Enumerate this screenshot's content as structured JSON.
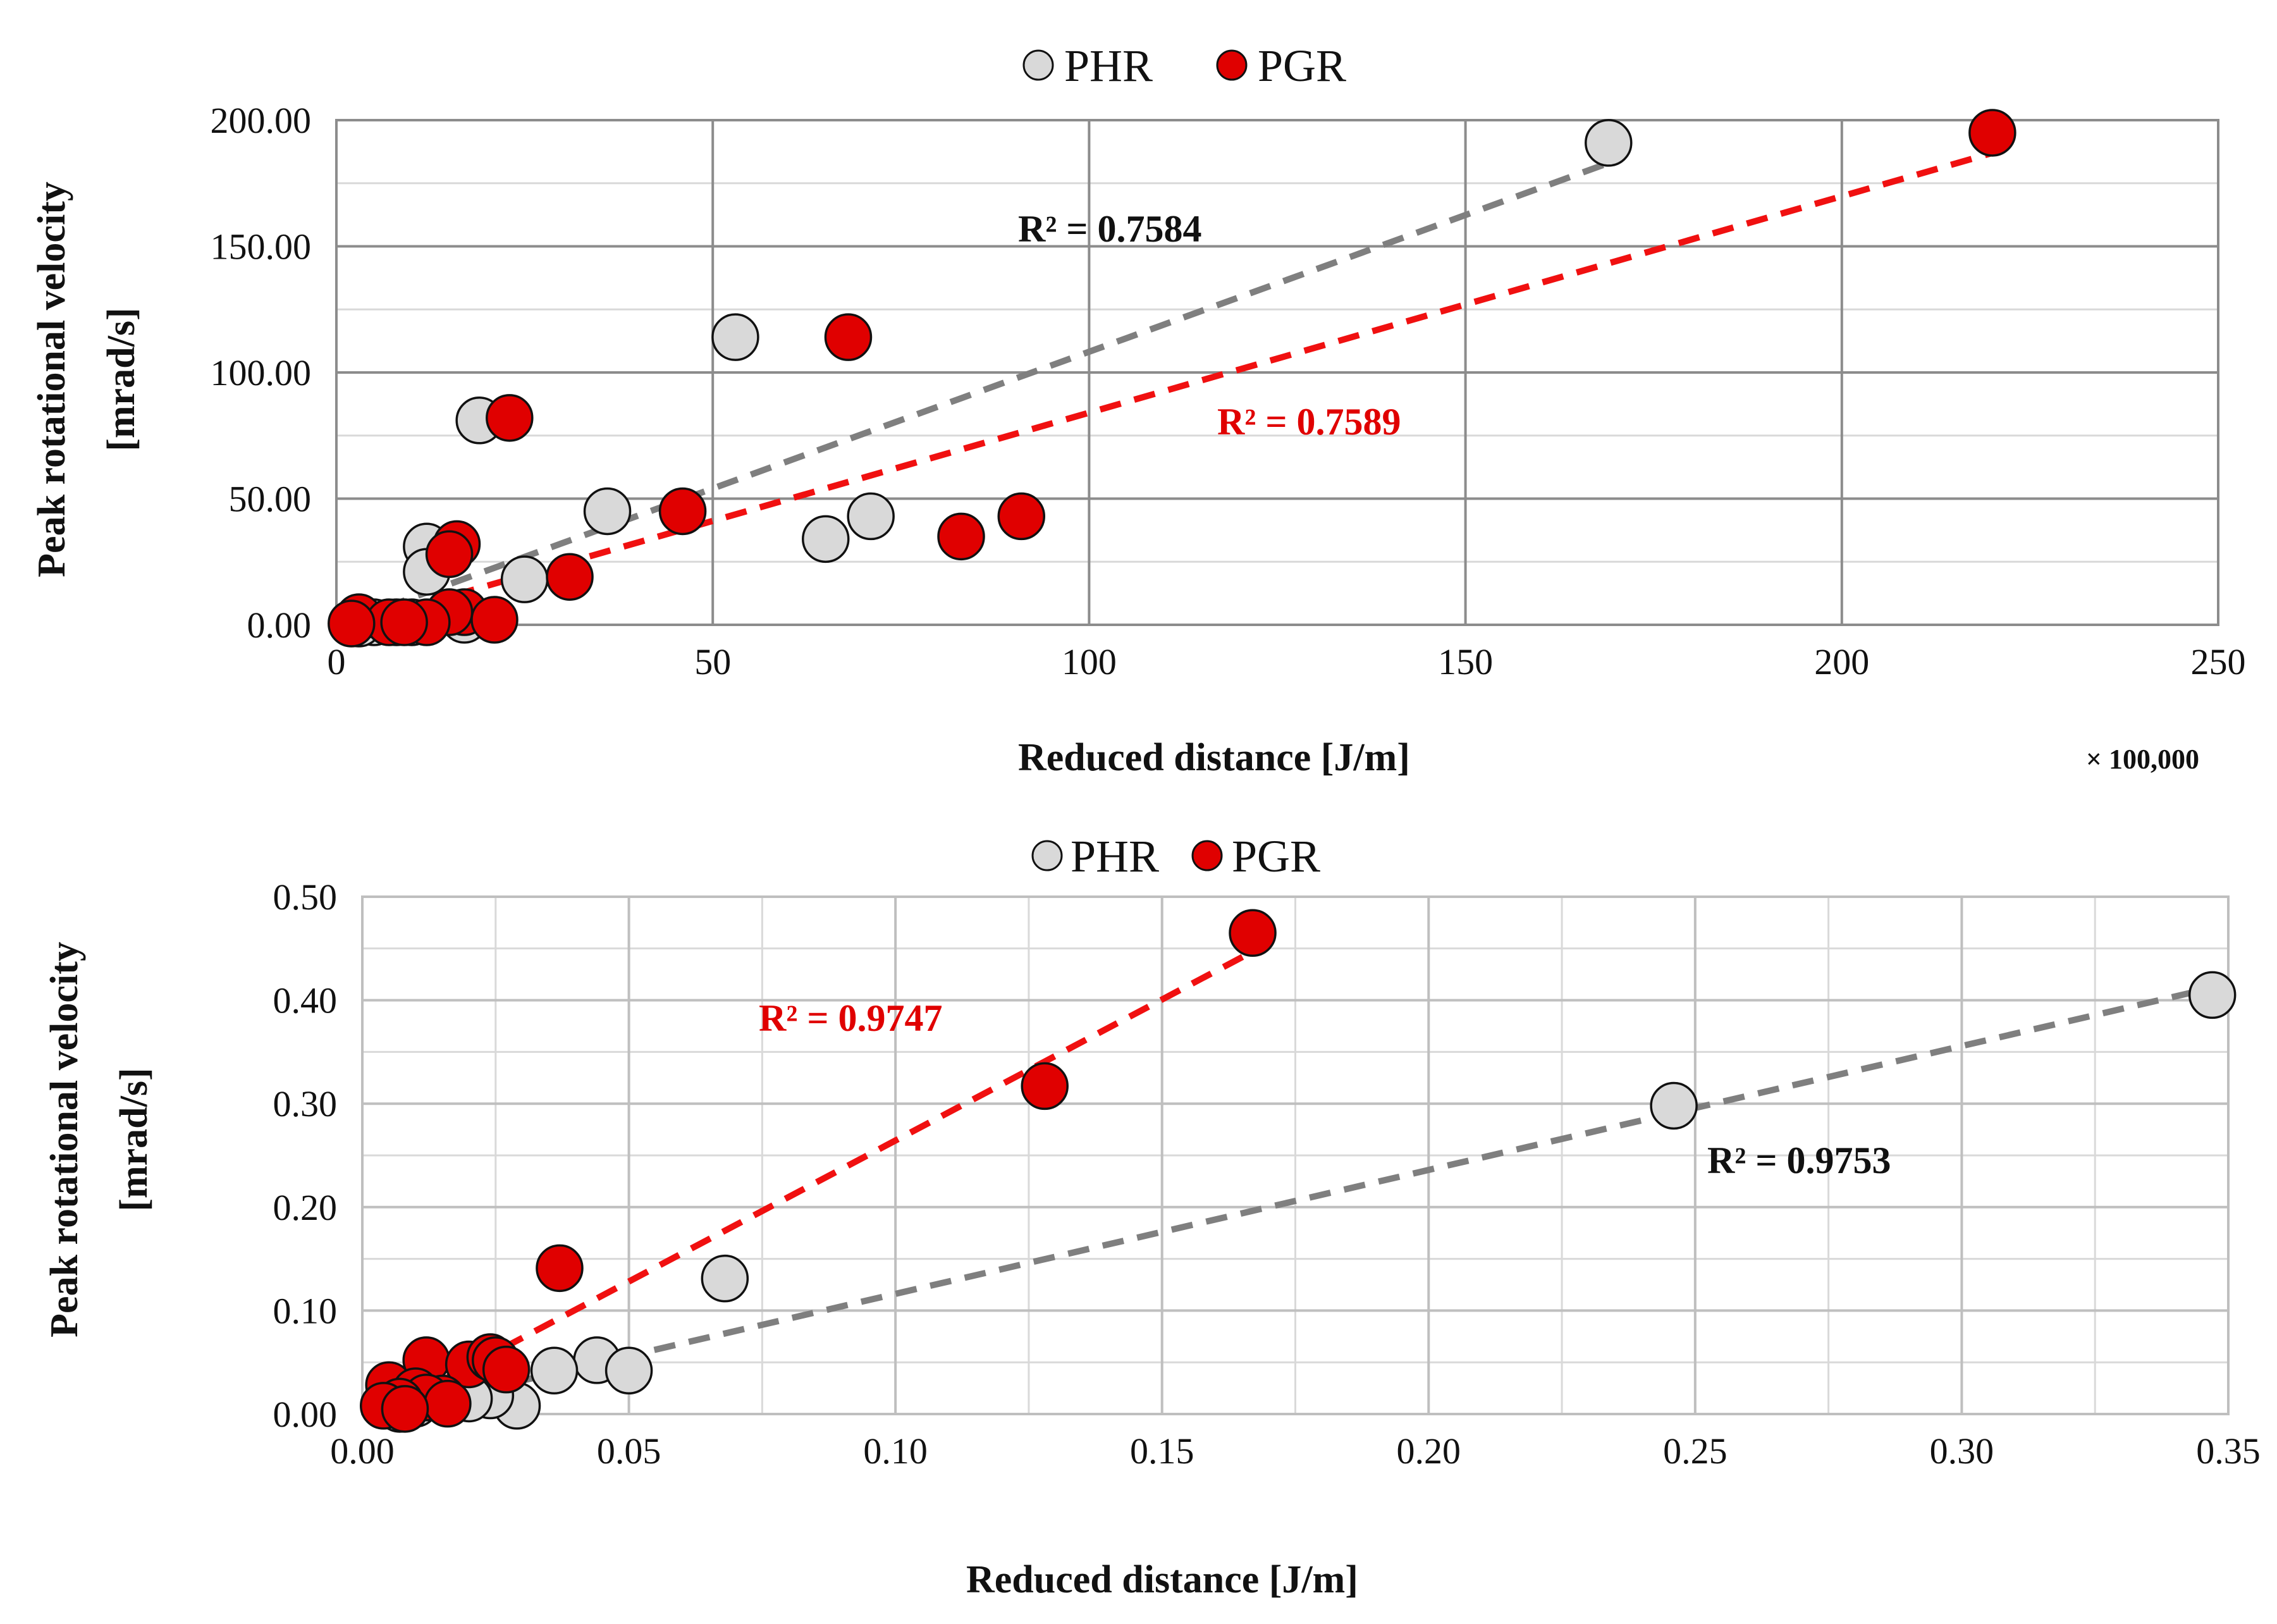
{
  "colors": {
    "phr_fill": "#d9d9d9",
    "pgr_fill": "#e00000",
    "phr_trend": "#7f7f7f",
    "pgr_trend": "#f01010",
    "grid_major": "#8c8c8c",
    "grid_minor": "#d9d9d9",
    "marker_stroke": "#111111"
  },
  "chart_data": [
    {
      "type": "scatter",
      "title": "",
      "xlabel": "Reduced distance [J/m]",
      "ylabel_lines": [
        "Peak rotational velocity",
        "[mrad/s]"
      ],
      "x_multiplier_label": "× 100,000",
      "xlim": [
        0,
        250
      ],
      "ylim": [
        0,
        200
      ],
      "xticks": [
        0,
        50,
        100,
        150,
        200,
        250
      ],
      "xtick_labels": [
        "0",
        "50",
        "100",
        "150",
        "200",
        "250"
      ],
      "yticks": [
        0,
        50,
        100,
        150,
        200
      ],
      "ytick_labels": [
        "0.00",
        "50.00",
        "100.00",
        "150.00",
        "200.00"
      ],
      "x_major_step": 50,
      "y_minor_step": 25,
      "legend": [
        "PHR",
        "PGR"
      ],
      "legend_position": "top",
      "series": [
        {
          "name": "PHR",
          "points": [
            [
              169,
              191
            ],
            [
              53,
              114
            ],
            [
              19,
              81
            ],
            [
              36,
              45
            ],
            [
              71,
              43
            ],
            [
              65,
              34
            ],
            [
              12,
              31
            ],
            [
              12,
              21
            ],
            [
              25,
              18
            ],
            [
              17,
              2
            ],
            [
              5,
              1
            ],
            [
              8,
              1
            ],
            [
              10,
              1
            ],
            [
              3,
              0.5
            ]
          ],
          "trendline": {
            "from": [
              2,
              2
            ],
            "to": [
              169,
              183
            ],
            "r2_label": "R² = 0.7584"
          }
        },
        {
          "name": "PGR",
          "points": [
            [
              220,
              195
            ],
            [
              68,
              114
            ],
            [
              23,
              82
            ],
            [
              46,
              45
            ],
            [
              91,
              43
            ],
            [
              83,
              35
            ],
            [
              16,
              32
            ],
            [
              15,
              28
            ],
            [
              31,
              19
            ],
            [
              17,
              5
            ],
            [
              15,
              5
            ],
            [
              21,
              2
            ],
            [
              12,
              1
            ],
            [
              3,
              3
            ],
            [
              7,
              1
            ],
            [
              9,
              1
            ],
            [
              2,
              0.5
            ]
          ],
          "trendline": {
            "from": [
              2,
              0
            ],
            "to": [
              220,
              187
            ],
            "r2_label": "R² = 0.7589"
          }
        }
      ]
    },
    {
      "type": "scatter",
      "title": "",
      "xlabel": "Reduced distance [J/m]",
      "ylabel_lines": [
        "Peak rotational velocity",
        "[mrad/s]"
      ],
      "xlim": [
        0,
        0.35
      ],
      "ylim": [
        0,
        0.5
      ],
      "xticks": [
        0,
        0.05,
        0.1,
        0.15,
        0.2,
        0.25,
        0.3,
        0.35
      ],
      "xtick_labels": [
        "0.00",
        "0.05",
        "0.10",
        "0.15",
        "0.20",
        "0.25",
        "0.30",
        "0.35"
      ],
      "yticks": [
        0,
        0.1,
        0.2,
        0.3,
        0.4,
        0.5
      ],
      "ytick_labels": [
        "0.00",
        "0.10",
        "0.20",
        "0.30",
        "0.40",
        "0.50"
      ],
      "x_minor_step": 0.025,
      "y_minor_step": 0.05,
      "legend": [
        "PHR",
        "PGR"
      ],
      "legend_position": "top",
      "series": [
        {
          "name": "PHR",
          "points": [
            [
              0.347,
              0.405
            ],
            [
              0.246,
              0.298
            ],
            [
              0.068,
              0.131
            ],
            [
              0.044,
              0.052
            ],
            [
              0.05,
              0.042
            ],
            [
              0.036,
              0.042
            ],
            [
              0.029,
              0.008
            ],
            [
              0.024,
              0.018
            ],
            [
              0.02,
              0.015
            ],
            [
              0.01,
              0.01
            ],
            [
              0.007,
              0.005
            ]
          ],
          "trendline": {
            "from": [
              0.003,
              0.0
            ],
            "to": [
              0.347,
              0.412
            ],
            "r2_label": "R² = 0.9753"
          }
        },
        {
          "name": "PGR",
          "points": [
            [
              0.167,
              0.465
            ],
            [
              0.128,
              0.317
            ],
            [
              0.037,
              0.141
            ],
            [
              0.012,
              0.052
            ],
            [
              0.02,
              0.048
            ],
            [
              0.024,
              0.055
            ],
            [
              0.025,
              0.052
            ],
            [
              0.027,
              0.043
            ],
            [
              0.005,
              0.028
            ],
            [
              0.01,
              0.022
            ],
            [
              0.015,
              0.015
            ],
            [
              0.012,
              0.016
            ],
            [
              0.016,
              0.01
            ],
            [
              0.007,
              0.012
            ],
            [
              0.004,
              0.008
            ],
            [
              0.008,
              0.005
            ]
          ],
          "trendline": {
            "from": [
              0.003,
              0.0
            ],
            "to": [
              0.167,
              0.447
            ],
            "r2_label": "R² = 0.9747"
          }
        }
      ]
    }
  ]
}
